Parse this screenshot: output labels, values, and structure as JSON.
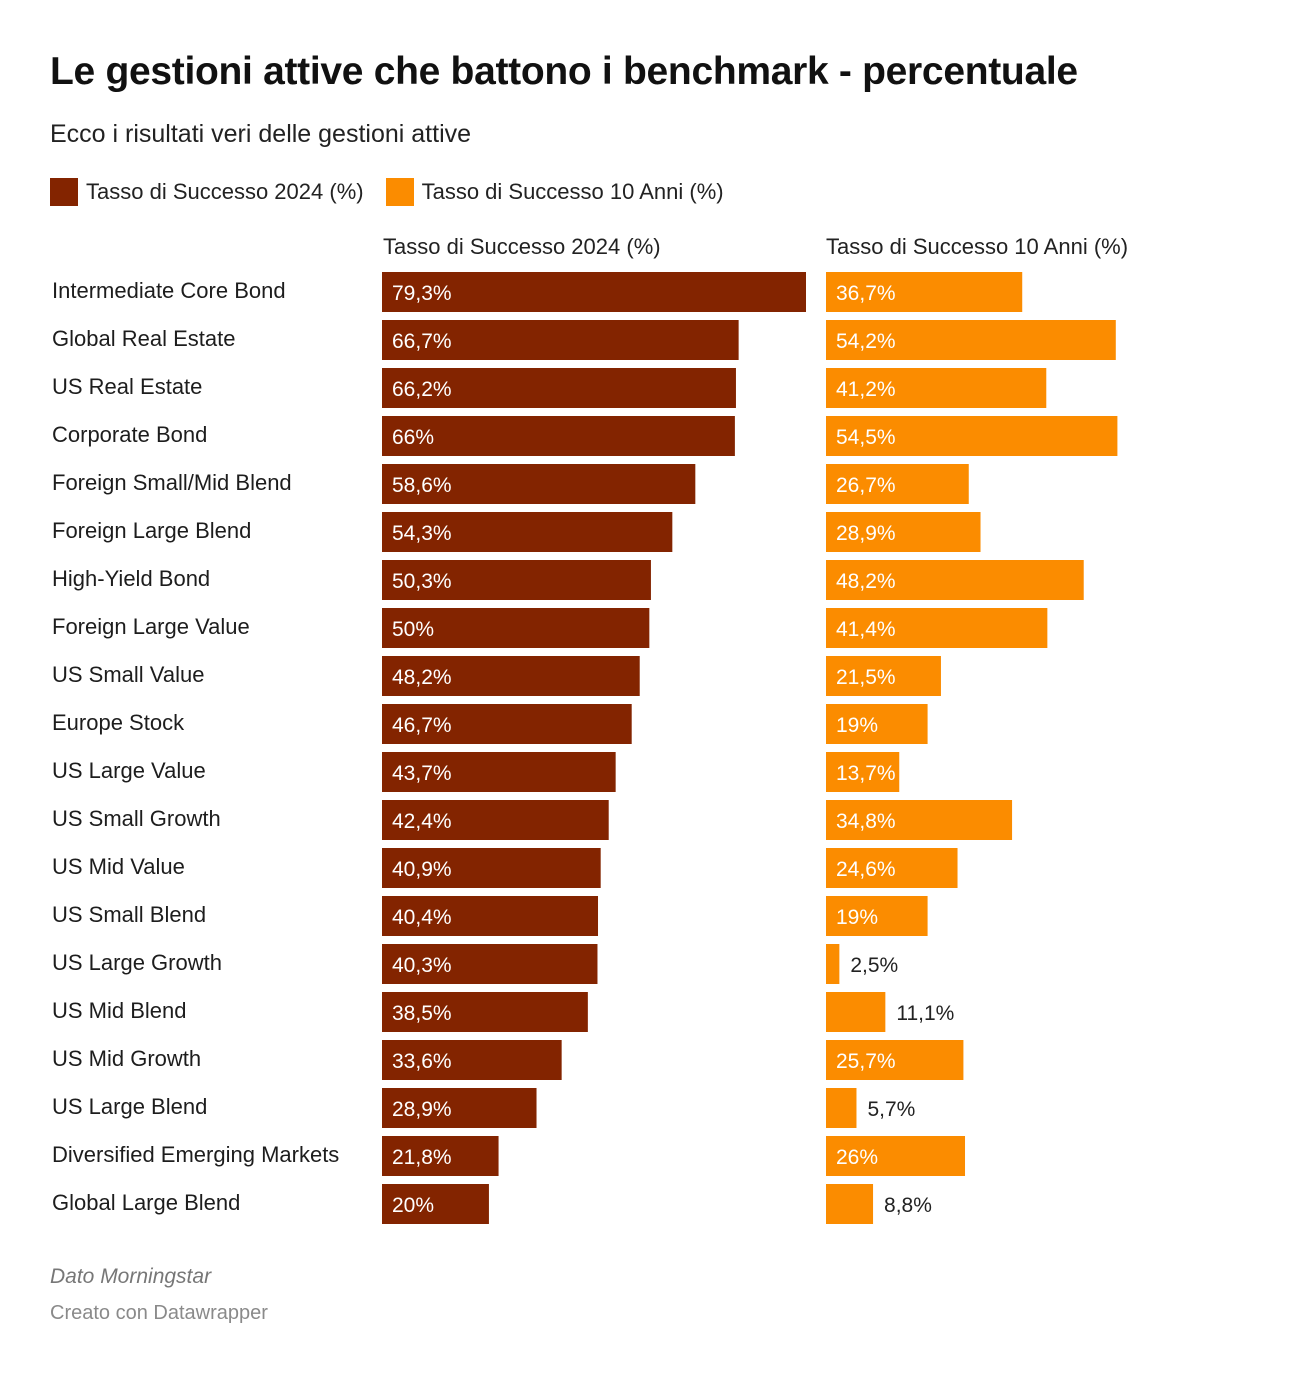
{
  "header": {
    "title": "Le gestioni attive che battono i benchmark - percentuale",
    "subtitle": "Ecco i risultati veri delle gestioni attive"
  },
  "footer": {
    "source": "Dato Morningstar",
    "credit": "Creato con Datawrapper"
  },
  "colors": {
    "series_2024": "#832400",
    "series_10y": "#fb8c00",
    "label_inside": "#ffffff",
    "label_outside": "#222222"
  },
  "chart_data": {
    "type": "bar",
    "orientation": "horizontal",
    "title": "Le gestioni attive che battono i benchmark - percentuale",
    "subtitle": "Ecco i risultati veri delle gestioni attive",
    "legend": [
      "Tasso di Successo 2024 (%)",
      "Tasso di Successo 10 Anni (%)"
    ],
    "legend_position": "top-left",
    "categories": [
      "Intermediate Core Bond",
      "Global Real Estate",
      "US Real Estate",
      "Corporate Bond",
      "Foreign Small/Mid Blend",
      "Foreign Large Blend",
      "High-Yield Bond",
      "Foreign Large Value",
      "US Small Value",
      "Europe Stock",
      "US Large Value",
      "US Small Growth",
      "US Mid Value",
      "US Small Blend",
      "US Large Growth",
      "US Mid Blend",
      "US Mid Growth",
      "US Large Blend",
      "Diversified Emerging Markets",
      "Global Large Blend"
    ],
    "series": [
      {
        "name": "Tasso di Successo 2024 (%)",
        "values": [
          79.3,
          66.7,
          66.2,
          66,
          58.6,
          54.3,
          50.3,
          50,
          48.2,
          46.7,
          43.7,
          42.4,
          40.9,
          40.4,
          40.3,
          38.5,
          33.6,
          28.9,
          21.8,
          20
        ],
        "labels": [
          "79,3%",
          "66,7%",
          "66,2%",
          "66%",
          "58,6%",
          "54,3%",
          "50,3%",
          "50%",
          "48,2%",
          "46,7%",
          "43,7%",
          "42,4%",
          "40,9%",
          "40,4%",
          "40,3%",
          "38,5%",
          "33,6%",
          "28,9%",
          "21,8%",
          "20%"
        ]
      },
      {
        "name": "Tasso di Successo 10 Anni (%)",
        "values": [
          36.7,
          54.2,
          41.2,
          54.5,
          26.7,
          28.9,
          48.2,
          41.4,
          21.5,
          19,
          13.7,
          34.8,
          24.6,
          19,
          2.5,
          11.1,
          25.7,
          5.7,
          26,
          8.8
        ],
        "labels": [
          "36,7%",
          "54,2%",
          "41,2%",
          "54,5%",
          "26,7%",
          "28,9%",
          "48,2%",
          "41,4%",
          "21,5%",
          "19%",
          "13,7%",
          "34,8%",
          "24,6%",
          "19%",
          "2,5%",
          "11,1%",
          "25,7%",
          "5,7%",
          "26%",
          "8,8%"
        ]
      }
    ],
    "xlim": [
      0,
      79.3
    ],
    "grid": false
  }
}
